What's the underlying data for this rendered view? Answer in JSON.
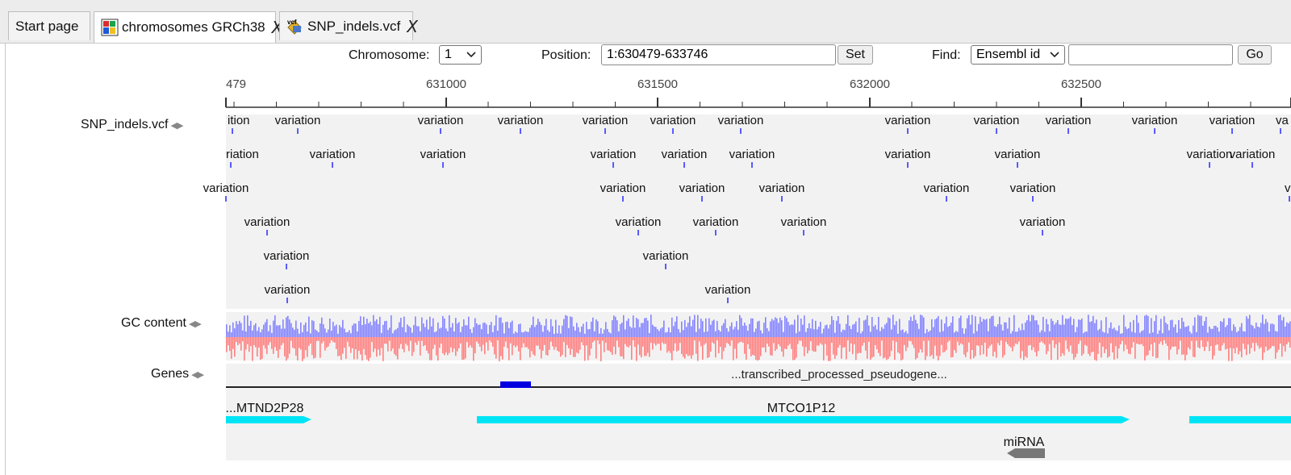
{
  "tabs": [
    {
      "label": "Start page",
      "icon": "none"
    },
    {
      "label": "chromosomes GRCh38",
      "icon": "chromosome-file-icon",
      "close": "X"
    },
    {
      "label": "SNP_indels.vcf",
      "icon": "vcf-file-icon",
      "close": "X"
    }
  ],
  "toolbar": {
    "chromosome_label": "Chromosome:",
    "chromosome_value": "1",
    "position_label": "Position:",
    "position_value": "1:630479-633746",
    "set_label": "Set",
    "find_label": "Find:",
    "find_type_value": "Ensembl id",
    "find_input_value": "",
    "go_label": "Go"
  },
  "ruler": {
    "ticks": [
      "479",
      "631000",
      "631500",
      "632000",
      "632500",
      "633"
    ]
  },
  "tracks": {
    "snp_label": "SNP_indels.vcf",
    "gc_label": "GC content",
    "genes_label": "Genes"
  },
  "variant_label": "variation",
  "variant_rows": [
    [
      "ition",
      "variation",
      "variation",
      "variation",
      "variation",
      "variation",
      "variation",
      "variation",
      "variation",
      "variation",
      "variation",
      "variation",
      "va"
    ],
    [
      "riation",
      "variation",
      "variation",
      "variation",
      "variation",
      "variation",
      "variation",
      "variation",
      "variation",
      "variation"
    ],
    [
      "variation",
      "variation",
      "variation",
      "variation",
      "variation",
      "variation",
      "v"
    ],
    [
      "variation",
      "variation",
      "variation",
      "variation",
      "variation"
    ],
    [
      "variation",
      "variation"
    ],
    [
      "variation",
      "variation"
    ]
  ],
  "genes": {
    "pseudogene_label": "...transcribed_processed_pseudogene...",
    "gene1": "...MTND2P28",
    "gene2": "MTCO1P12",
    "mirna": "miRNA"
  },
  "colors": {
    "track_bg": "#f2f2f2",
    "variant_tick": "#5b5bff",
    "gc_blue": "#8484ff",
    "gc_red": "#ff8080",
    "gene_cyan": "#00e5f5",
    "pseudogene_blue": "#0000e0",
    "mirna_gray": "#777777"
  }
}
